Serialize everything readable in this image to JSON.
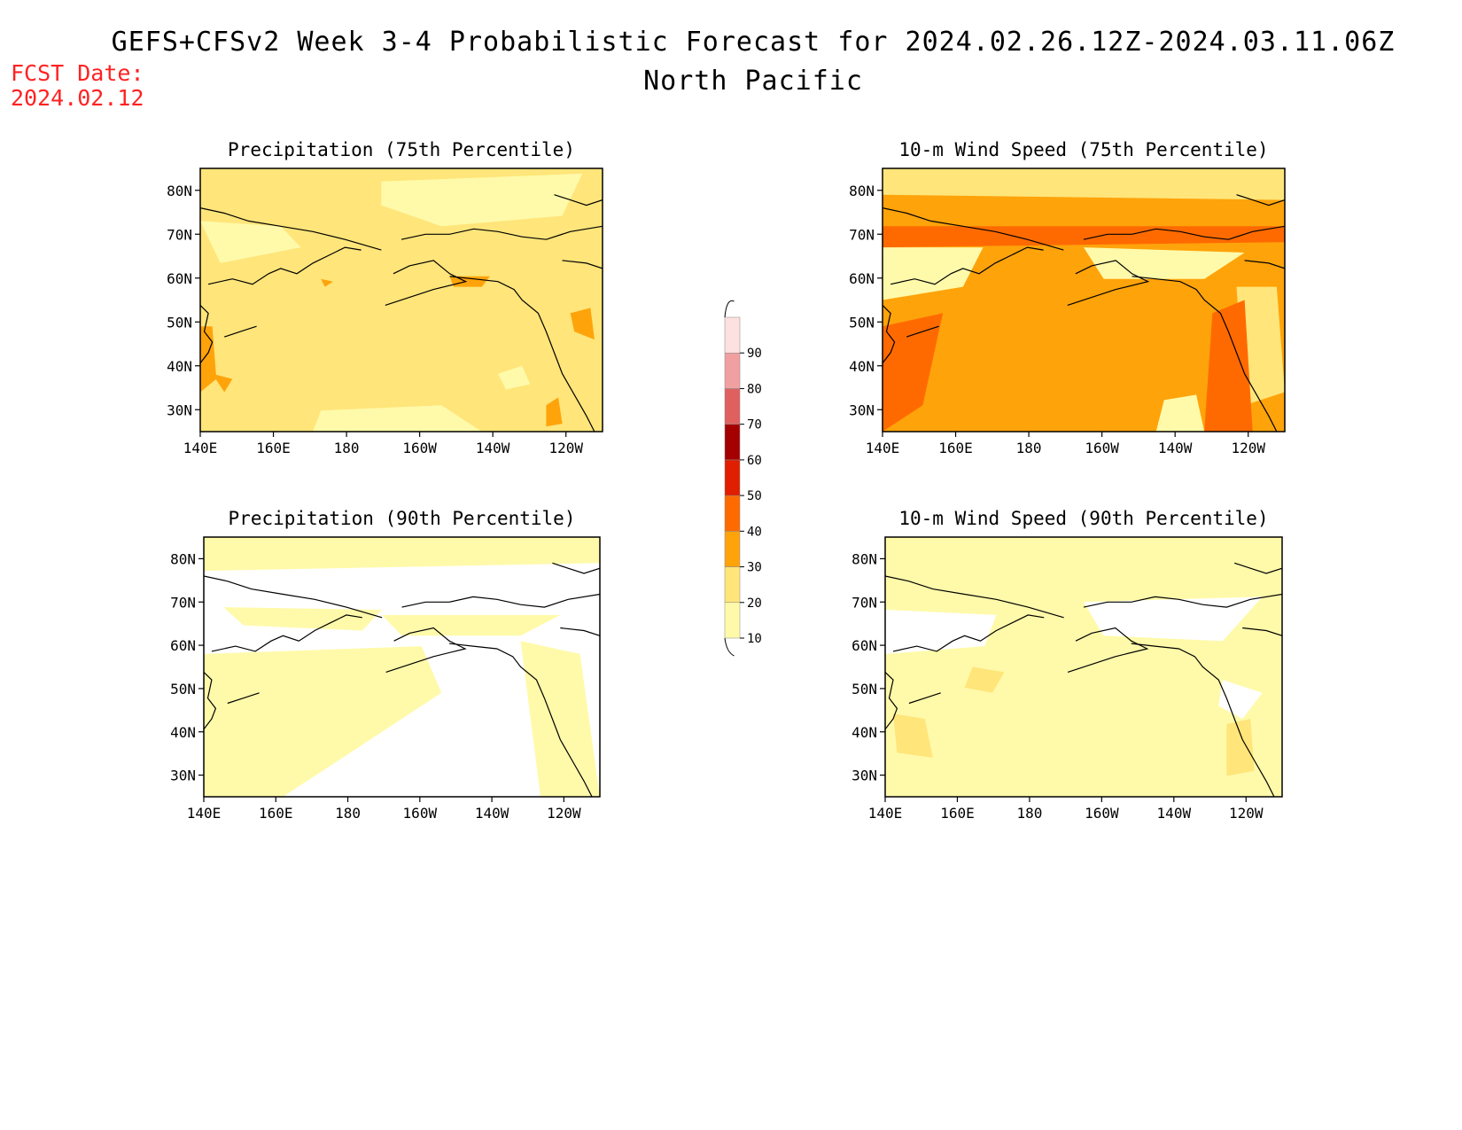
{
  "header": {
    "title": "GEFS+CFSv2 Week 3-4 Probabilistic Forecast for 2024.02.26.12Z-2024.03.11.06Z",
    "subtitle": "North Pacific",
    "fcst_label": "FCST Date:",
    "fcst_date": "2024.02.12"
  },
  "lat_ticks": [
    "80N",
    "70N",
    "60N",
    "50N",
    "40N",
    "30N"
  ],
  "lon_ticks": [
    "140E",
    "160E",
    "180",
    "160W",
    "140W",
    "120W"
  ],
  "colorbar": {
    "levels": [
      10,
      20,
      30,
      40,
      50,
      60,
      70,
      80,
      90
    ],
    "colors": [
      "#fffaaa",
      "#ffe57a",
      "#ffa30a",
      "#ff6a00",
      "#e01e00",
      "#a50000",
      "#e06060",
      "#f0a0a0",
      "#fde0e0"
    ]
  },
  "panels": [
    {
      "id": "precip-75",
      "title": "Precipitation (75th Percentile)",
      "background_class": 20
    },
    {
      "id": "wind-75",
      "title": "10-m Wind Speed (75th Percentile)",
      "background_class": 30
    },
    {
      "id": "precip-90",
      "title": "Precipitation (90th Percentile)",
      "background_class": 0
    },
    {
      "id": "wind-90",
      "title": "10-m Wind Speed (90th Percentile)",
      "background_class": 10
    }
  ]
}
